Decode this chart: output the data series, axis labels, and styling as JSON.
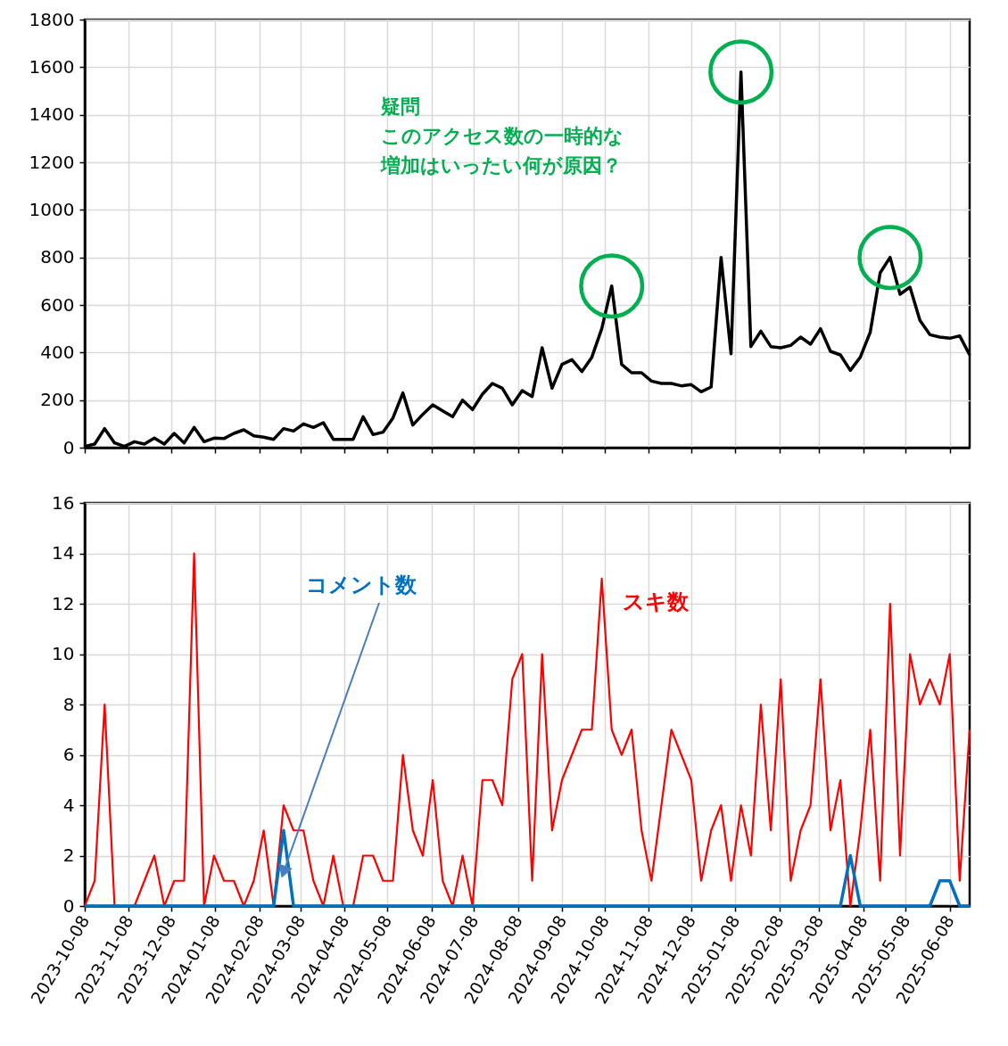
{
  "chart_data": [
    {
      "type": "line",
      "x": [
        "2023-10-08",
        "2023-10-15",
        "2023-10-22",
        "2023-10-29",
        "2023-11-05",
        "2023-11-12",
        "2023-11-19",
        "2023-11-26",
        "2023-12-03",
        "2023-12-10",
        "2023-12-17",
        "2023-12-24",
        "2023-12-31",
        "2024-01-07",
        "2024-01-14",
        "2024-01-21",
        "2024-01-28",
        "2024-02-04",
        "2024-02-11",
        "2024-02-18",
        "2024-02-25",
        "2024-03-03",
        "2024-03-10",
        "2024-03-17",
        "2024-03-24",
        "2024-03-31",
        "2024-04-07",
        "2024-04-14",
        "2024-04-21",
        "2024-04-28",
        "2024-05-05",
        "2024-05-12",
        "2024-05-19",
        "2024-05-26",
        "2024-06-02",
        "2024-06-09",
        "2024-06-16",
        "2024-06-23",
        "2024-06-30",
        "2024-07-07",
        "2024-07-14",
        "2024-07-21",
        "2024-07-28",
        "2024-08-04",
        "2024-08-11",
        "2024-08-18",
        "2024-08-25",
        "2024-09-01",
        "2024-09-08",
        "2024-09-15",
        "2024-09-22",
        "2024-09-29",
        "2024-10-06",
        "2024-10-13",
        "2024-10-20",
        "2024-10-27",
        "2024-11-03",
        "2024-11-10",
        "2024-11-17",
        "2024-11-24",
        "2024-12-01",
        "2024-12-08",
        "2024-12-15",
        "2024-12-22",
        "2024-12-29",
        "2025-01-05",
        "2025-01-12",
        "2025-01-19",
        "2025-01-26",
        "2025-02-02",
        "2025-02-09",
        "2025-02-16",
        "2025-02-23",
        "2025-03-02",
        "2025-03-09",
        "2025-03-16",
        "2025-03-23",
        "2025-03-30",
        "2025-04-06",
        "2025-04-13",
        "2025-04-20",
        "2025-04-27",
        "2025-05-04",
        "2025-05-11",
        "2025-05-18",
        "2025-05-25",
        "2025-06-01",
        "2025-06-08",
        "2025-06-15",
        "2025-06-22"
      ],
      "series": [
        {
          "color": "#000000",
          "values": [
            5,
            15,
            80,
            20,
            5,
            25,
            15,
            40,
            15,
            60,
            20,
            85,
            25,
            40,
            38,
            60,
            75,
            50,
            44,
            35,
            80,
            70,
            100,
            85,
            105,
            35,
            35,
            35,
            130,
            55,
            65,
            125,
            230,
            95,
            140,
            180,
            155,
            130,
            200,
            160,
            225,
            270,
            250,
            180,
            240,
            215,
            420,
            250,
            350,
            370,
            320,
            380,
            500,
            680,
            350,
            315,
            315,
            280,
            270,
            270,
            260,
            265,
            235,
            255,
            800,
            395,
            1580,
            425,
            490,
            425,
            420,
            430,
            465,
            435,
            500,
            405,
            390,
            325,
            380,
            485,
            735,
            800,
            645,
            675,
            535,
            475,
            465,
            460,
            470,
            390
          ]
        },
        {
          "type": "scatter",
          "marker": "circle",
          "color": "#00b050",
          "x": [
            "2024-10-13",
            "2025-01-12",
            "2025-04-27"
          ],
          "values": [
            680,
            1580,
            800
          ]
        }
      ],
      "xlim": [
        "2023-10-08",
        "2025-06-22"
      ],
      "xticks": [
        "2023-10-08",
        "2023-11-08",
        "2023-12-08",
        "2024-01-08",
        "2024-02-08",
        "2024-03-08",
        "2024-04-08",
        "2024-05-08",
        "2024-06-08",
        "2024-07-08",
        "2024-08-08",
        "2024-09-08",
        "2024-10-08",
        "2024-11-08",
        "2024-12-08",
        "2025-01-08",
        "2025-02-08",
        "2025-03-08",
        "2025-04-08",
        "2025-05-08",
        "2025-06-08"
      ],
      "ylim": [
        0,
        1800
      ],
      "yticks": [
        0,
        200,
        400,
        600,
        800,
        1000,
        1200,
        1400,
        1600,
        1800
      ],
      "grid": true,
      "tick_labels": "y",
      "annotations": [
        "疑問",
        "このアクセス数の一時的な増加はいったい何が原因？"
      ]
    },
    {
      "type": "line",
      "x": [
        "2023-10-08",
        "2023-10-15",
        "2023-10-22",
        "2023-10-29",
        "2023-11-05",
        "2023-11-12",
        "2023-11-19",
        "2023-11-26",
        "2023-12-03",
        "2023-12-10",
        "2023-12-17",
        "2023-12-24",
        "2023-12-31",
        "2024-01-07",
        "2024-01-14",
        "2024-01-21",
        "2024-01-28",
        "2024-02-04",
        "2024-02-11",
        "2024-02-18",
        "2024-02-25",
        "2024-03-03",
        "2024-03-10",
        "2024-03-17",
        "2024-03-24",
        "2024-03-31",
        "2024-04-07",
        "2024-04-14",
        "2024-04-21",
        "2024-04-28",
        "2024-05-05",
        "2024-05-12",
        "2024-05-19",
        "2024-05-26",
        "2024-06-02",
        "2024-06-09",
        "2024-06-16",
        "2024-06-23",
        "2024-06-30",
        "2024-07-07",
        "2024-07-14",
        "2024-07-21",
        "2024-07-28",
        "2024-08-04",
        "2024-08-11",
        "2024-08-18",
        "2024-08-25",
        "2024-09-01",
        "2024-09-08",
        "2024-09-15",
        "2024-09-22",
        "2024-09-29",
        "2024-10-06",
        "2024-10-13",
        "2024-10-20",
        "2024-10-27",
        "2024-11-03",
        "2024-11-10",
        "2024-11-17",
        "2024-11-24",
        "2024-12-01",
        "2024-12-08",
        "2024-12-15",
        "2024-12-22",
        "2024-12-29",
        "2025-01-05",
        "2025-01-12",
        "2025-01-19",
        "2025-01-26",
        "2025-02-02",
        "2025-02-09",
        "2025-02-16",
        "2025-02-23",
        "2025-03-02",
        "2025-03-09",
        "2025-03-16",
        "2025-03-23",
        "2025-03-30",
        "2025-04-06",
        "2025-04-13",
        "2025-04-20",
        "2025-04-27",
        "2025-05-04",
        "2025-05-11",
        "2025-05-18",
        "2025-05-25",
        "2025-06-01",
        "2025-06-08",
        "2025-06-15",
        "2025-06-22"
      ],
      "series": [
        {
          "name": "スキ数",
          "color": "#ff0000",
          "values": [
            0,
            1,
            8,
            0,
            0,
            0,
            1,
            2,
            0,
            1,
            1,
            14,
            0,
            2,
            1,
            1,
            0,
            1,
            3,
            0,
            4,
            3,
            3,
            1,
            0,
            2,
            0,
            0,
            2,
            2,
            1,
            1,
            6,
            3,
            2,
            5,
            1,
            0,
            2,
            0,
            5,
            5,
            4,
            9,
            10,
            1,
            10,
            3,
            5,
            6,
            7,
            7,
            13,
            7,
            6,
            7,
            3,
            1,
            4,
            7,
            6,
            5,
            1,
            3,
            4,
            1,
            4,
            2,
            8,
            3,
            9,
            1,
            3,
            4,
            9,
            3,
            5,
            0,
            3,
            7,
            1,
            12,
            2,
            10,
            8,
            9,
            8,
            10,
            1,
            7
          ]
        },
        {
          "name": "コメント数",
          "color": "#0070c0",
          "values": [
            0,
            0,
            0,
            0,
            0,
            0,
            0,
            0,
            0,
            0,
            0,
            0,
            0,
            0,
            0,
            0,
            0,
            0,
            0,
            0,
            3,
            0,
            0,
            0,
            0,
            0,
            0,
            0,
            0,
            0,
            0,
            0,
            0,
            0,
            0,
            0,
            0,
            0,
            0,
            0,
            0,
            0,
            0,
            0,
            0,
            0,
            0,
            0,
            0,
            0,
            0,
            0,
            0,
            0,
            0,
            0,
            0,
            0,
            0,
            0,
            0,
            0,
            0,
            0,
            0,
            0,
            0,
            0,
            0,
            0,
            0,
            0,
            0,
            0,
            0,
            0,
            0,
            2,
            0,
            0,
            0,
            0,
            0,
            0,
            0,
            0,
            1,
            1,
            0,
            0
          ]
        }
      ],
      "xlim": [
        "2023-10-08",
        "2025-06-22"
      ],
      "xticks": [
        "2023-10-08",
        "2023-11-08",
        "2023-12-08",
        "2024-01-08",
        "2024-02-08",
        "2024-03-08",
        "2024-04-08",
        "2024-05-08",
        "2024-06-08",
        "2024-07-08",
        "2024-08-08",
        "2024-09-08",
        "2024-10-08",
        "2024-11-08",
        "2024-12-08",
        "2025-01-08",
        "2025-02-08",
        "2025-03-08",
        "2025-04-08",
        "2025-05-08",
        "2025-06-08"
      ],
      "ylim": [
        0,
        16
      ],
      "yticks": [
        0,
        2,
        4,
        6,
        8,
        10,
        12,
        14,
        16
      ],
      "grid": true
    }
  ]
}
